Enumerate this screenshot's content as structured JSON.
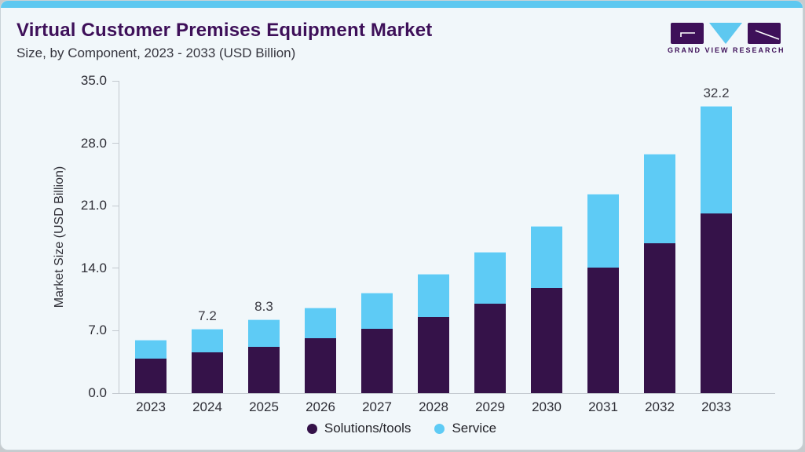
{
  "page": {
    "accent_color": "#5ec8f0",
    "background_color": "#f1f7fa"
  },
  "header": {
    "title": "Virtual Customer Premises Equipment Market",
    "subtitle": "Size, by Component, 2023 - 2033 (USD Billion)"
  },
  "logo": {
    "text": "GRAND VIEW RESEARCH",
    "purple": "#3e1059",
    "blue": "#5ec8f0"
  },
  "chart_data": {
    "type": "bar",
    "stacked": true,
    "title": "Virtual Customer Premises Equipment Market Size, by Component, 2023 - 2033 (USD Billion)",
    "categories": [
      "2023",
      "2024",
      "2025",
      "2026",
      "2027",
      "2028",
      "2029",
      "2030",
      "2031",
      "2032",
      "2033"
    ],
    "series": [
      {
        "name": "Solutions/tools",
        "color": "#351249",
        "values": [
          3.9,
          4.6,
          5.2,
          6.2,
          7.2,
          8.5,
          10.0,
          11.8,
          14.1,
          16.8,
          20.1
        ]
      },
      {
        "name": "Service",
        "color": "#5ecbf5",
        "values": [
          2.1,
          2.6,
          3.1,
          3.4,
          4.1,
          4.9,
          5.8,
          6.9,
          8.2,
          10.0,
          12.1
        ]
      }
    ],
    "totals": [
      6.0,
      7.2,
      8.3,
      9.6,
      11.3,
      13.4,
      15.8,
      18.7,
      22.3,
      26.8,
      32.2
    ],
    "total_labels": [
      "",
      "7.2",
      "8.3",
      "",
      "",
      "",
      "",
      "",
      "",
      "",
      "32.2"
    ],
    "xlabel": "",
    "ylabel": "Market Size (USD Billion)",
    "ylim": [
      0,
      35
    ],
    "yticks": [
      "0.0",
      "7.0",
      "14.0",
      "21.0",
      "28.0",
      "35.0"
    ],
    "grid": false,
    "legend_position": "bottom",
    "legend": [
      "Solutions/tools",
      "Service"
    ]
  }
}
